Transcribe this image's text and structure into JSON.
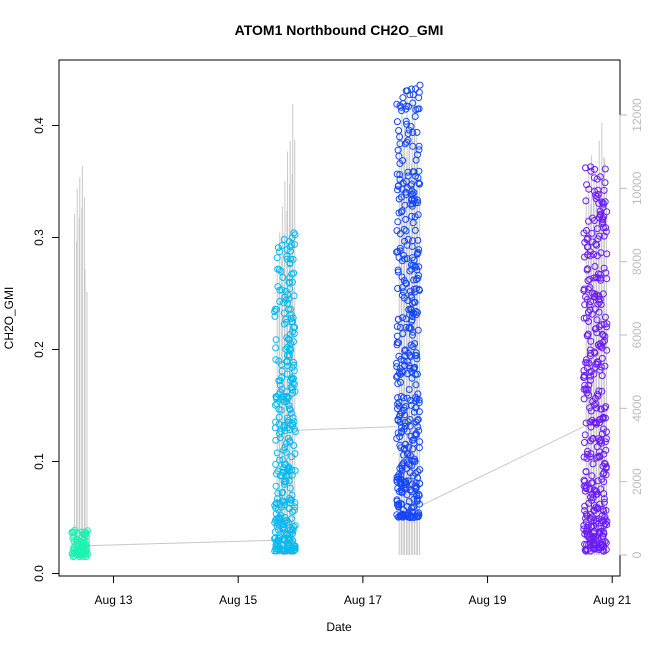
{
  "chart_data": {
    "type": "scatter",
    "title": "ATOM1 Northbound CH2O_GMI",
    "xlabel": "Date",
    "ylabel": "CH2O_GMI",
    "xlim": [
      "2016-08-12T03:00",
      "2016-08-21T03:00"
    ],
    "ylim": [
      0,
      0.45
    ],
    "y_ticks": [
      0.0,
      0.1,
      0.2,
      0.3,
      0.4
    ],
    "x_ticks": [
      {
        "date": "2016-08-13",
        "label": "Aug 13"
      },
      {
        "date": "2016-08-15",
        "label": "Aug 15"
      },
      {
        "date": "2016-08-17",
        "label": "Aug 17"
      },
      {
        "date": "2016-08-19",
        "label": "Aug 19"
      },
      {
        "date": "2016-08-21",
        "label": "Aug 21"
      }
    ],
    "y2_ticks": [
      0,
      2000,
      4000,
      6000,
      8000,
      10000,
      12000
    ],
    "y2lim": [
      -400,
      13000
    ],
    "secondary_series": {
      "color": "#c8c8c8",
      "description": "altitude",
      "flight_windows": [
        [
          "2016-08-12T08:00",
          "2016-08-12T14:00"
        ],
        [
          "2016-08-15T14:00",
          "2016-08-15T22:00"
        ],
        [
          "2016-08-17T13:00",
          "2016-08-17T22:00"
        ],
        [
          "2016-08-20T13:00",
          "2016-08-20T22:00"
        ]
      ],
      "profile_peaks": [
        [
          "2016-08-12T09:00",
          9300
        ],
        [
          "2016-08-12T10:00",
          10000
        ],
        [
          "2016-08-12T11:00",
          10300
        ],
        [
          "2016-08-12T12:00",
          10600
        ],
        [
          "2016-08-12T13:00",
          7800
        ],
        [
          "2016-08-15T15:00",
          7900
        ],
        [
          "2016-08-15T16:00",
          8800
        ],
        [
          "2016-08-15T17:00",
          9500
        ],
        [
          "2016-08-15T18:00",
          10200
        ],
        [
          "2016-08-15T19:00",
          11000
        ],
        [
          "2016-08-15T20:00",
          11300
        ],
        [
          "2016-08-15T21:00",
          12300
        ],
        [
          "2016-08-17T14:00",
          11500
        ],
        [
          "2016-08-17T15:00",
          12200
        ],
        [
          "2016-08-17T16:00",
          11800
        ],
        [
          "2016-08-17T17:00",
          12500
        ],
        [
          "2016-08-17T18:00",
          11600
        ],
        [
          "2016-08-17T19:00",
          12600
        ],
        [
          "2016-08-17T20:00",
          12500
        ],
        [
          "2016-08-17T21:00",
          11000
        ],
        [
          "2016-08-20T14:00",
          9800
        ],
        [
          "2016-08-20T15:00",
          10400
        ],
        [
          "2016-08-20T16:00",
          10900
        ],
        [
          "2016-08-20T17:00",
          10300
        ],
        [
          "2016-08-20T18:00",
          10200
        ],
        [
          "2016-08-20T19:00",
          11300
        ],
        [
          "2016-08-20T20:00",
          11800
        ],
        [
          "2016-08-20T21:00",
          10800
        ]
      ],
      "transits": [
        [
          "2016-08-12T12:00",
          250
        ],
        [
          "2016-08-15T14:00",
          400
        ],
        [
          "2016-08-15T21:00",
          3400
        ],
        [
          "2016-08-17T13:00",
          3500
        ],
        [
          "2016-08-17T21:00",
          1300
        ],
        [
          "2016-08-20T13:00",
          3500
        ]
      ]
    },
    "series": [
      {
        "date": "2016-08-12",
        "color": "#1ff2b0",
        "range": [
          0.015,
          0.04
        ],
        "windows": [
          [
            "2016-08-12T08:00",
            "2016-08-12T14:00"
          ]
        ]
      },
      {
        "date": "2016-08-15",
        "color": "#07baef",
        "range": [
          0.02,
          0.305
        ],
        "windows": [
          [
            "2016-08-15T14:00",
            "2016-08-15T22:00"
          ]
        ]
      },
      {
        "date": "2016-08-17",
        "color": "#1446f5",
        "range": [
          0.05,
          0.44
        ],
        "windows": [
          [
            "2016-08-17T13:00",
            "2016-08-17T22:00"
          ]
        ]
      },
      {
        "date": "2016-08-20",
        "color": "#6a1cf6",
        "range": [
          0.02,
          0.365
        ],
        "windows": [
          [
            "2016-08-20T13:00",
            "2016-08-20T22:00"
          ]
        ]
      }
    ]
  }
}
